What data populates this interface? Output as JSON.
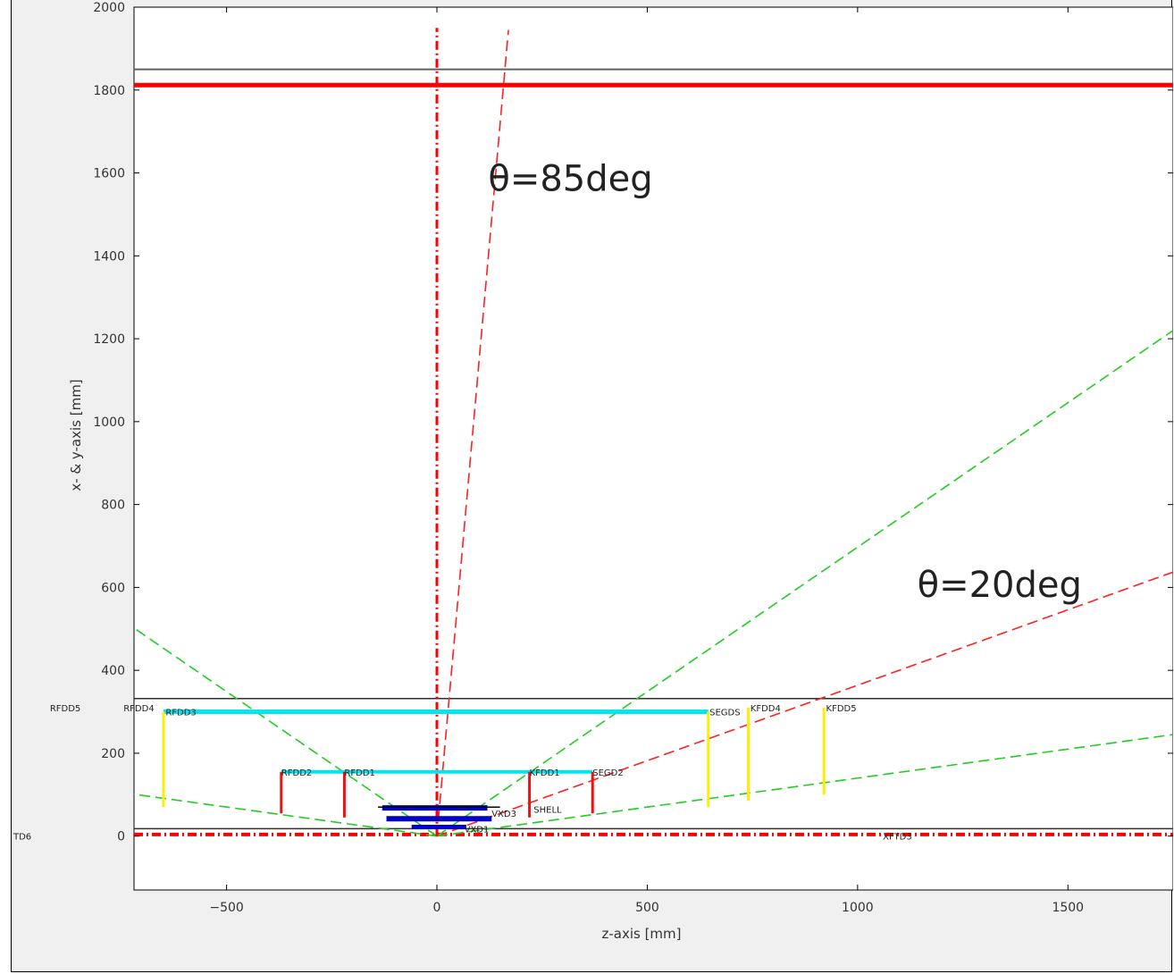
{
  "chart_data": {
    "type": "line",
    "xlabel": "z-axis [mm]",
    "ylabel": "x- & y-axis [mm]",
    "xlim": [
      -720,
      1750
    ],
    "ylim": [
      -130,
      2000
    ],
    "x_ticks": [
      -500,
      0,
      500,
      1000,
      1500
    ],
    "y_ticks": [
      0,
      200,
      400,
      600,
      800,
      1000,
      1200,
      1400,
      1600,
      1800,
      2000
    ],
    "grid": false,
    "annotations": [
      {
        "text": "θ=85deg",
        "x": 160,
        "y": 1600
      },
      {
        "text": "θ=20deg",
        "x": 1180,
        "y": 620
      }
    ],
    "hlines": [
      {
        "y": 1850,
        "color": "#606060",
        "width": 2,
        "style": "solid"
      },
      {
        "y": 1812,
        "color": "#ff0000",
        "width": 5,
        "style": "solid"
      },
      {
        "y": 332,
        "color": "#303030",
        "width": 1.5,
        "style": "solid"
      },
      {
        "y": 18,
        "color": "#303030",
        "width": 1.5,
        "style": "solid"
      },
      {
        "y": 4,
        "color": "#ff0000",
        "width": 4,
        "style": "dashdot"
      }
    ],
    "vlines": [
      {
        "x": 0,
        "y0": 0,
        "y1": 1950,
        "color": "#ff0000",
        "width": 3,
        "style": "dashdot"
      }
    ],
    "cones": [
      {
        "name": "θ=85deg",
        "x": [
          0,
          170
        ],
        "y": [
          0,
          1945
        ],
        "color": "#ff2020",
        "style": "dashed"
      },
      {
        "name": "θ=20deg",
        "x": [
          0,
          1750
        ],
        "y": [
          0,
          637
        ],
        "color": "#ff2020",
        "style": "dashed"
      },
      {
        "x": [
          0,
          1750
        ],
        "y": [
          0,
          1220
        ],
        "color": "#22cc22",
        "style": "dashed"
      },
      {
        "x": [
          0,
          -720
        ],
        "y": [
          0,
          502
        ],
        "color": "#22cc22",
        "style": "dashed"
      },
      {
        "x": [
          0,
          1750
        ],
        "y": [
          0,
          245
        ],
        "color": "#22cc22",
        "style": "dashed"
      },
      {
        "x": [
          0,
          -720
        ],
        "y": [
          0,
          101
        ],
        "color": "#22cc22",
        "style": "dashed"
      }
    ],
    "barrels": [
      {
        "x0": -650,
        "x1": 645,
        "y": 300,
        "color": "#00e5ee",
        "width": 5
      },
      {
        "x0": -370,
        "x1": 370,
        "y": 155,
        "color": "#00e5ee",
        "width": 4
      },
      {
        "x0": -130,
        "x1": 120,
        "y": 68,
        "color": "#0000cc",
        "width": 6
      },
      {
        "x0": -120,
        "x1": 130,
        "y": 42,
        "color": "#0000cc",
        "width": 6
      },
      {
        "x0": -60,
        "x1": 70,
        "y": 22,
        "color": "#0000cc",
        "width": 5
      },
      {
        "x0": -140,
        "x1": 150,
        "y": 70,
        "color": "#000000",
        "width": 1.5
      }
    ],
    "disks": [
      {
        "x": -650,
        "y0": 70,
        "y1": 300,
        "color": "#ffee00"
      },
      {
        "x": 645,
        "y0": 70,
        "y1": 300,
        "color": "#ffee00"
      },
      {
        "x": 740,
        "y0": 85,
        "y1": 310,
        "color": "#ffee00"
      },
      {
        "x": 920,
        "y0": 100,
        "y1": 310,
        "color": "#ffee00"
      },
      {
        "x": -370,
        "y0": 55,
        "y1": 155,
        "color": "#ee1111"
      },
      {
        "x": -220,
        "y0": 45,
        "y1": 155,
        "color": "#ee1111"
      },
      {
        "x": 220,
        "y0": 45,
        "y1": 155,
        "color": "#ee1111"
      },
      {
        "x": 370,
        "y0": 55,
        "y1": 155,
        "color": "#ee1111"
      }
    ],
    "labels": [
      {
        "text": "RFDD5",
        "x": -920,
        "y": 310
      },
      {
        "text": "RFDD4",
        "x": -745,
        "y": 310
      },
      {
        "text": "RFDD3",
        "x": -645,
        "y": 300
      },
      {
        "text": "RFDD2",
        "x": -370,
        "y": 155
      },
      {
        "text": "RFDD1",
        "x": -220,
        "y": 155
      },
      {
        "text": "KFDD1",
        "x": 220,
        "y": 155
      },
      {
        "text": "SEGD2",
        "x": 370,
        "y": 155
      },
      {
        "text": "SEGDS",
        "x": 648,
        "y": 300
      },
      {
        "text": "KFDD4",
        "x": 745,
        "y": 310
      },
      {
        "text": "KFDD5",
        "x": 925,
        "y": 310
      },
      {
        "text": "SHELL",
        "x": 230,
        "y": 65
      },
      {
        "text": "TD6",
        "x": -1015,
        "y": 0
      },
      {
        "text": "XFTD3",
        "x": 1060,
        "y": 0
      },
      {
        "text": "VXD3",
        "x": 130,
        "y": 55
      },
      {
        "text": "VXD1",
        "x": 65,
        "y": 18
      }
    ]
  }
}
